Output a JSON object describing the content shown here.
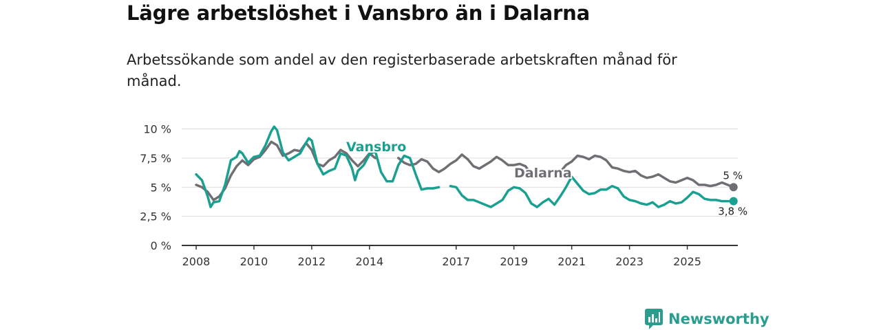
{
  "title": "Lägre arbetslöshet i Vansbro än i Dalarna",
  "subtitle": "Arbetssökande som andel av den registerbaserade arbetskraften månad för månad.",
  "brand": {
    "name": "Newsworthy",
    "icon": "newsworthy-logo-icon",
    "color": "#2a9d8f"
  },
  "chart_data": {
    "type": "line",
    "title": "Lägre arbetslöshet i Vansbro än i Dalarna",
    "xlabel": "",
    "ylabel": "",
    "ylim": [
      0,
      10.8
    ],
    "xlim": [
      2007.5,
      2026.75
    ],
    "grid": true,
    "x_ticks": [
      {
        "value": 2008,
        "label": "2008"
      },
      {
        "value": 2010,
        "label": "2010"
      },
      {
        "value": 2012,
        "label": "2012"
      },
      {
        "value": 2014,
        "label": "2014"
      },
      {
        "value": 2017,
        "label": "2017"
      },
      {
        "value": 2019,
        "label": "2019"
      },
      {
        "value": 2021,
        "label": "2021"
      },
      {
        "value": 2023,
        "label": "2023"
      },
      {
        "value": 2025,
        "label": "2025"
      }
    ],
    "y_ticks": [
      {
        "value": 0,
        "label": "0 %"
      },
      {
        "value": 2.5,
        "label": "2,5 %"
      },
      {
        "value": 5,
        "label": "5 %"
      },
      {
        "value": 7.5,
        "label": "7,5 %"
      },
      {
        "value": 10,
        "label": "10 %"
      }
    ],
    "series": [
      {
        "name": "Dalarna",
        "label": "Dalarna",
        "color": "#6f6e73",
        "end_label": "5 %",
        "segments": [
          [
            [
              2008.0,
              5.2
            ],
            [
              2008.2,
              5.0
            ],
            [
              2008.4,
              4.6
            ],
            [
              2008.6,
              3.9
            ],
            [
              2008.8,
              4.2
            ],
            [
              2009.0,
              4.9
            ],
            [
              2009.2,
              6.0
            ],
            [
              2009.4,
              6.8
            ],
            [
              2009.6,
              7.3
            ],
            [
              2009.8,
              6.9
            ],
            [
              2010.0,
              7.4
            ],
            [
              2010.2,
              7.6
            ],
            [
              2010.4,
              8.2
            ],
            [
              2010.6,
              8.9
            ],
            [
              2010.8,
              8.6
            ],
            [
              2011.0,
              7.7
            ],
            [
              2011.2,
              7.9
            ],
            [
              2011.4,
              8.2
            ],
            [
              2011.6,
              8.1
            ],
            [
              2011.8,
              8.8
            ],
            [
              2012.0,
              8.2
            ],
            [
              2012.2,
              7.0
            ],
            [
              2012.4,
              6.8
            ],
            [
              2012.6,
              7.3
            ],
            [
              2012.8,
              7.6
            ],
            [
              2013.0,
              8.2
            ],
            [
              2013.2,
              7.9
            ],
            [
              2013.4,
              7.3
            ],
            [
              2013.6,
              6.8
            ],
            [
              2013.8,
              7.3
            ],
            [
              2014.0,
              7.9
            ],
            [
              2014.2,
              7.5
            ]
          ],
          [
            [
              2015.0,
              7.5
            ],
            [
              2015.2,
              7.1
            ],
            [
              2015.4,
              6.9
            ],
            [
              2015.6,
              7.0
            ],
            [
              2015.8,
              7.4
            ],
            [
              2016.0,
              7.2
            ],
            [
              2016.2,
              6.6
            ],
            [
              2016.4,
              6.3
            ],
            [
              2016.6,
              6.6
            ],
            [
              2016.8,
              7.0
            ],
            [
              2017.0,
              7.3
            ],
            [
              2017.2,
              7.8
            ],
            [
              2017.4,
              7.4
            ],
            [
              2017.6,
              6.8
            ],
            [
              2017.8,
              6.6
            ],
            [
              2018.0,
              6.9
            ],
            [
              2018.2,
              7.2
            ],
            [
              2018.4,
              7.6
            ],
            [
              2018.6,
              7.3
            ],
            [
              2018.8,
              6.9
            ],
            [
              2019.0,
              6.9
            ],
            [
              2019.2,
              7.0
            ],
            [
              2019.4,
              6.8
            ],
            [
              2019.6,
              6.1
            ],
            [
              2019.8,
              6.0
            ],
            [
              2020.0,
              6.1
            ]
          ],
          [
            [
              2020.6,
              6.3
            ],
            [
              2020.8,
              6.9
            ],
            [
              2021.0,
              7.2
            ],
            [
              2021.2,
              7.7
            ],
            [
              2021.4,
              7.6
            ],
            [
              2021.6,
              7.4
            ],
            [
              2021.8,
              7.7
            ],
            [
              2022.0,
              7.6
            ],
            [
              2022.2,
              7.3
            ],
            [
              2022.4,
              6.7
            ],
            [
              2022.6,
              6.6
            ],
            [
              2022.8,
              6.4
            ],
            [
              2023.0,
              6.3
            ],
            [
              2023.2,
              6.4
            ],
            [
              2023.4,
              6.0
            ],
            [
              2023.6,
              5.8
            ],
            [
              2023.8,
              5.9
            ],
            [
              2024.0,
              6.1
            ],
            [
              2024.2,
              5.8
            ],
            [
              2024.4,
              5.5
            ],
            [
              2024.6,
              5.4
            ],
            [
              2024.8,
              5.6
            ],
            [
              2025.0,
              5.8
            ],
            [
              2025.2,
              5.6
            ],
            [
              2025.4,
              5.2
            ],
            [
              2025.6,
              5.2
            ],
            [
              2025.8,
              5.1
            ],
            [
              2026.0,
              5.2
            ],
            [
              2026.2,
              5.4
            ],
            [
              2026.4,
              5.2
            ],
            [
              2026.6,
              5.0
            ]
          ]
        ]
      },
      {
        "name": "Vansbro",
        "label": "Vansbro",
        "color": "#1aa091",
        "end_label": "3,8 %",
        "segments": [
          [
            [
              2008.0,
              6.1
            ],
            [
              2008.2,
              5.6
            ],
            [
              2008.4,
              4.2
            ],
            [
              2008.5,
              3.3
            ],
            [
              2008.6,
              3.7
            ],
            [
              2008.8,
              3.8
            ],
            [
              2009.0,
              5.2
            ],
            [
              2009.2,
              7.3
            ],
            [
              2009.4,
              7.6
            ],
            [
              2009.5,
              8.1
            ],
            [
              2009.6,
              7.9
            ],
            [
              2009.8,
              7.1
            ],
            [
              2010.0,
              7.6
            ],
            [
              2010.2,
              7.7
            ],
            [
              2010.4,
              8.6
            ],
            [
              2010.6,
              9.8
            ],
            [
              2010.7,
              10.2
            ],
            [
              2010.8,
              9.9
            ],
            [
              2011.0,
              8.0
            ],
            [
              2011.2,
              7.3
            ],
            [
              2011.4,
              7.6
            ],
            [
              2011.6,
              7.9
            ],
            [
              2011.8,
              8.8
            ],
            [
              2011.9,
              9.2
            ],
            [
              2012.0,
              9.0
            ],
            [
              2012.2,
              7.0
            ],
            [
              2012.4,
              6.1
            ],
            [
              2012.6,
              6.4
            ],
            [
              2012.8,
              6.6
            ],
            [
              2013.0,
              7.9
            ],
            [
              2013.2,
              7.7
            ],
            [
              2013.4,
              6.6
            ],
            [
              2013.5,
              5.6
            ],
            [
              2013.6,
              6.4
            ],
            [
              2013.8,
              6.9
            ],
            [
              2014.0,
              7.8
            ],
            [
              2014.2,
              8.1
            ],
            [
              2014.4,
              6.3
            ],
            [
              2014.6,
              5.5
            ],
            [
              2014.8,
              5.5
            ],
            [
              2015.0,
              6.9
            ],
            [
              2015.2,
              7.7
            ],
            [
              2015.4,
              7.5
            ],
            [
              2015.6,
              6.1
            ],
            [
              2015.8,
              4.8
            ],
            [
              2016.0,
              4.9
            ],
            [
              2016.2,
              4.9
            ],
            [
              2016.4,
              5.0
            ]
          ],
          [
            [
              2016.8,
              5.1
            ],
            [
              2017.0,
              5.0
            ],
            [
              2017.2,
              4.3
            ],
            [
              2017.4,
              3.9
            ],
            [
              2017.6,
              3.9
            ],
            [
              2017.8,
              3.7
            ],
            [
              2018.0,
              3.5
            ],
            [
              2018.2,
              3.3
            ],
            [
              2018.4,
              3.6
            ],
            [
              2018.6,
              3.9
            ],
            [
              2018.8,
              4.7
            ],
            [
              2019.0,
              5.0
            ],
            [
              2019.2,
              4.9
            ],
            [
              2019.4,
              4.5
            ],
            [
              2019.6,
              3.6
            ],
            [
              2019.8,
              3.3
            ],
            [
              2020.0,
              3.7
            ],
            [
              2020.2,
              4.0
            ],
            [
              2020.4,
              3.5
            ],
            [
              2020.6,
              4.2
            ],
            [
              2020.8,
              5.0
            ],
            [
              2021.0,
              5.9
            ],
            [
              2021.2,
              5.3
            ],
            [
              2021.4,
              4.7
            ],
            [
              2021.6,
              4.4
            ],
            [
              2021.8,
              4.5
            ],
            [
              2022.0,
              4.8
            ],
            [
              2022.2,
              4.8
            ],
            [
              2022.4,
              5.1
            ],
            [
              2022.6,
              4.9
            ],
            [
              2022.8,
              4.2
            ],
            [
              2023.0,
              3.9
            ],
            [
              2023.2,
              3.8
            ],
            [
              2023.4,
              3.6
            ],
            [
              2023.6,
              3.5
            ],
            [
              2023.8,
              3.7
            ],
            [
              2024.0,
              3.3
            ],
            [
              2024.2,
              3.5
            ],
            [
              2024.4,
              3.8
            ],
            [
              2024.6,
              3.6
            ],
            [
              2024.8,
              3.7
            ],
            [
              2025.0,
              4.1
            ],
            [
              2025.2,
              4.6
            ],
            [
              2025.4,
              4.4
            ],
            [
              2025.6,
              4.0
            ],
            [
              2025.8,
              3.9
            ],
            [
              2026.0,
              3.9
            ],
            [
              2026.2,
              3.8
            ],
            [
              2026.4,
              3.8
            ],
            [
              2026.6,
              3.8
            ]
          ]
        ]
      }
    ]
  }
}
